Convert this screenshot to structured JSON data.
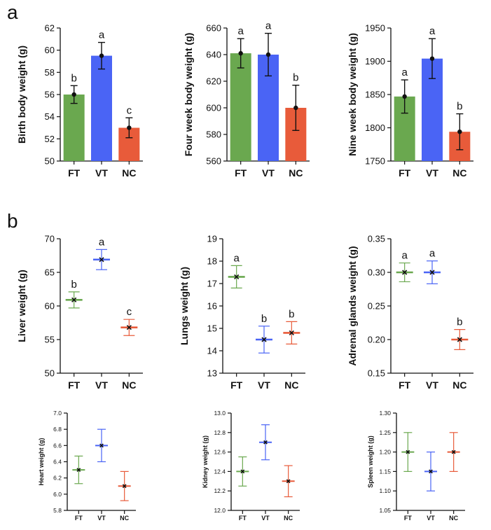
{
  "panel_labels": [
    "a",
    "b"
  ],
  "colors": {
    "FT": "#6aa84f",
    "VT": "#4a64f5",
    "NC": "#e85b3a",
    "ink": "#111111"
  },
  "chart_data": [
    {
      "type": "bar",
      "ylabel": "Birth body weight (g)",
      "categories": [
        "FT",
        "VT",
        "NC"
      ],
      "values": [
        56.0,
        59.5,
        53.0
      ],
      "errors": [
        0.8,
        1.2,
        0.9
      ],
      "letters": [
        "b",
        "a",
        "c"
      ],
      "ylim": [
        50,
        62
      ],
      "ticks": [
        50,
        52,
        54,
        56,
        58,
        60,
        62
      ]
    },
    {
      "type": "bar",
      "ylabel": "Four week body weight (g)",
      "categories": [
        "FT",
        "VT",
        "NC"
      ],
      "values": [
        641,
        640,
        600
      ],
      "errors": [
        11,
        16,
        17
      ],
      "letters": [
        "a",
        "a",
        "b"
      ],
      "ylim": [
        560,
        660
      ],
      "ticks": [
        560,
        580,
        600,
        620,
        640,
        660
      ]
    },
    {
      "type": "bar",
      "ylabel": "Nine week body weight (g)",
      "categories": [
        "FT",
        "VT",
        "NC"
      ],
      "values": [
        1847,
        1904,
        1794
      ],
      "errors": [
        25,
        30,
        27
      ],
      "letters": [
        "a",
        "a",
        "b"
      ],
      "ylim": [
        1750,
        1950
      ],
      "ticks": [
        1750,
        1800,
        1850,
        1900,
        1950
      ]
    },
    {
      "type": "scatter",
      "ylabel": "Liver weight (g)",
      "categories": [
        "FT",
        "VT",
        "NC"
      ],
      "values": [
        60.9,
        66.9,
        56.8
      ],
      "errors": [
        1.2,
        1.5,
        1.2
      ],
      "letters": [
        "b",
        "a",
        "c"
      ],
      "ylim": [
        50,
        70
      ],
      "ticks": [
        50,
        55,
        60,
        65,
        70
      ]
    },
    {
      "type": "scatter",
      "ylabel": "Lungs weight (g)",
      "categories": [
        "FT",
        "VT",
        "NC"
      ],
      "values": [
        17.3,
        14.5,
        14.8
      ],
      "errors": [
        0.5,
        0.6,
        0.5
      ],
      "letters": [
        "a",
        "b",
        "b"
      ],
      "ylim": [
        13,
        19
      ],
      "ticks": [
        13,
        14,
        15,
        16,
        17,
        18,
        19
      ]
    },
    {
      "type": "scatter",
      "ylabel": "Adrenal glands weight (g)",
      "categories": [
        "FT",
        "VT",
        "NC"
      ],
      "values": [
        0.3,
        0.3,
        0.2
      ],
      "errors": [
        0.014,
        0.017,
        0.015
      ],
      "letters": [
        "a",
        "a",
        "b"
      ],
      "ylim": [
        0.15,
        0.35
      ],
      "ticks": [
        "0.15",
        "0.20",
        "0.25",
        "0.30",
        "0.35"
      ]
    },
    {
      "type": "scatter",
      "ylabel": "Heart weight (g)",
      "categories": [
        "FT",
        "VT",
        "NC"
      ],
      "values": [
        6.3,
        6.6,
        6.1
      ],
      "errors": [
        0.17,
        0.2,
        0.18
      ],
      "letters": [],
      "ylim": [
        5.8,
        7.0
      ],
      "ticks": [
        "5.8",
        "6.0",
        "6.2",
        "6.4",
        "6.6",
        "6.8",
        "7.0"
      ]
    },
    {
      "type": "scatter",
      "ylabel": "Kidney weight (g)",
      "categories": [
        "FT",
        "VT",
        "NC"
      ],
      "values": [
        12.4,
        12.7,
        12.3
      ],
      "errors": [
        0.15,
        0.18,
        0.16
      ],
      "letters": [],
      "ylim": [
        12.0,
        13.0
      ],
      "ticks": [
        "12.0",
        "12.2",
        "12.4",
        "12.6",
        "12.8",
        "13.0"
      ]
    },
    {
      "type": "scatter",
      "ylabel": "Spleen weight (g)",
      "categories": [
        "FT",
        "VT",
        "NC"
      ],
      "values": [
        1.2,
        1.15,
        1.2
      ],
      "errors": [
        0.05,
        0.05,
        0.05
      ],
      "letters": [],
      "ylim": [
        1.05,
        1.3
      ],
      "ticks": [
        "1.05",
        "1.10",
        "1.15",
        "1.20",
        "1.25",
        "1.30"
      ]
    }
  ]
}
